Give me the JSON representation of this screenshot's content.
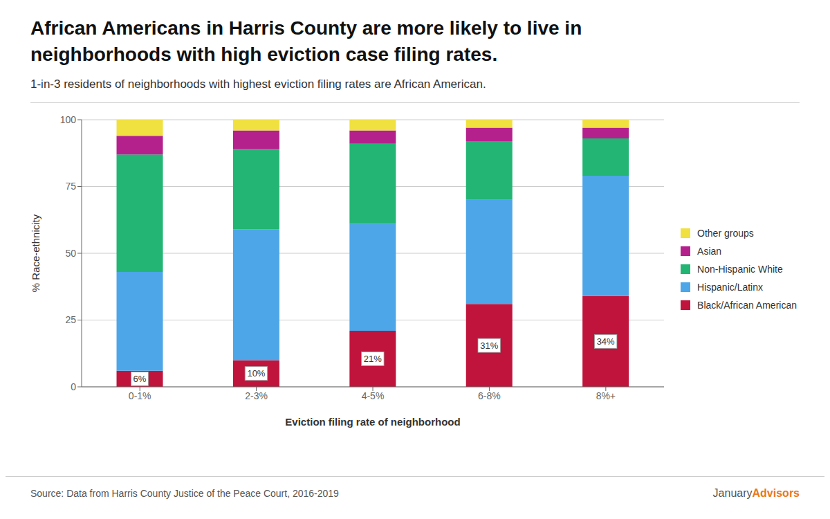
{
  "chart_data": {
    "type": "bar",
    "stacked": true,
    "title": [
      "African Americans in Harris County are more likely to live in",
      "neighborhoods with high eviction case filing rates."
    ],
    "subtitle": "1-in-3 residents of neighborhoods with highest eviction filing rates are African American.",
    "xlabel": "Eviction filing rate of neighborhood",
    "ylabel": "% Race-ethnicity",
    "categories": [
      "0-1%",
      "2-3%",
      "4-5%",
      "6-8%",
      "8%+"
    ],
    "series": [
      {
        "name": "Black/African American",
        "color": "#C0143C",
        "values": [
          6,
          10,
          21,
          31,
          34
        ],
        "value_labels": [
          "6%",
          "10%",
          "21%",
          "31%",
          "34%"
        ]
      },
      {
        "name": "Hispanic/Latinx",
        "color": "#4DA6E8",
        "values": [
          37,
          49,
          40,
          39,
          45
        ]
      },
      {
        "name": "Non-Hispanic White",
        "color": "#22B573",
        "values": [
          44,
          30,
          30,
          22,
          14
        ]
      },
      {
        "name": "Asian",
        "color": "#B5218C",
        "values": [
          7,
          7,
          5,
          5,
          4
        ]
      },
      {
        "name": "Other groups",
        "color": "#F0E040",
        "values": [
          6,
          4,
          4,
          3,
          3
        ]
      }
    ],
    "ylim": [
      0,
      100
    ],
    "yticks": [
      0,
      25,
      50,
      75,
      100
    ],
    "grid": true,
    "legend": "right",
    "annotations": [
      {
        "text": "Source: Data from Harris County Justice of the Peace Court, 2016-2019"
      },
      {
        "text": "January"
      },
      {
        "text": "Advisors",
        "color": "#E87722"
      }
    ]
  }
}
